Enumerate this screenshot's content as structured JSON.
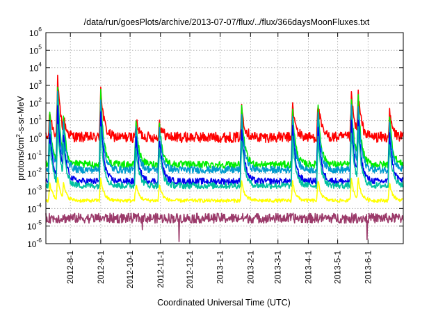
{
  "chart_data": {
    "type": "line",
    "title": "/data/run/goesPlots/archive/2013-07-07/flux/../flux/366daysMoonFluxes.txt",
    "xlabel": "Coordinated Universal Time (UTC)",
    "ylabel_parts": [
      "protons/cm",
      "2",
      "-s-sr-MeV"
    ],
    "y_scale": "log",
    "ylim_exp": [
      -6,
      6
    ],
    "yticks": [
      {
        "base": "10",
        "exp": "6"
      },
      {
        "base": "10",
        "exp": "5"
      },
      {
        "base": "10",
        "exp": "4"
      },
      {
        "base": "10",
        "exp": "3"
      },
      {
        "base": "10",
        "exp": "2"
      },
      {
        "base": "10",
        "exp": "1"
      },
      {
        "base": "10",
        "exp": "0"
      },
      {
        "base": "10",
        "exp": "-1"
      },
      {
        "base": "10",
        "exp": "-2"
      },
      {
        "base": "10",
        "exp": "-3"
      },
      {
        "base": "10",
        "exp": "-4"
      },
      {
        "base": "10",
        "exp": "-5"
      },
      {
        "base": "10",
        "exp": "-6"
      }
    ],
    "xlim": [
      "2012-07-07",
      "2013-07-07"
    ],
    "xticks": [
      "2012-8-1",
      "2012-9-1",
      "2012-10-1",
      "2012-11-1",
      "2012-12-1",
      "2013-1-1",
      "2013-2-1",
      "2013-3-1",
      "2013-4-1",
      "2013-5-1",
      "2013-6-1"
    ],
    "xtick_dates": [
      "2012-08-01",
      "2012-09-01",
      "2012-10-01",
      "2012-11-01",
      "2012-12-01",
      "2013-01-01",
      "2013-02-01",
      "2013-03-01",
      "2013-04-01",
      "2013-05-01",
      "2013-06-01"
    ],
    "grid": true,
    "legend": "none",
    "events": [
      {
        "date": "2012-07-11",
        "peak_exp": 1.5
      },
      {
        "date": "2012-07-19",
        "peak_exp": 3.3
      },
      {
        "date": "2012-07-25",
        "peak_exp": 1.2
      },
      {
        "date": "2012-09-01",
        "peak_exp": 2.9
      },
      {
        "date": "2012-10-07",
        "peak_exp": 1.0
      },
      {
        "date": "2012-10-31",
        "peak_exp": 0.9
      },
      {
        "date": "2013-01-23",
        "peak_exp": 1.8
      },
      {
        "date": "2013-03-16",
        "peak_exp": 1.8
      },
      {
        "date": "2013-04-11",
        "peak_exp": 2.0
      },
      {
        "date": "2013-05-15",
        "peak_exp": 2.4
      },
      {
        "date": "2013-05-22",
        "peak_exp": 2.6
      },
      {
        "date": "2013-06-23",
        "peak_exp": 1.4
      }
    ],
    "series": [
      {
        "color": "#ff0000",
        "base_exp": 0.05,
        "noise": 0.3,
        "response": 1.0,
        "lift": 0.0
      },
      {
        "color": "#00ee00",
        "base_exp": -1.5,
        "noise": 0.2,
        "response": 0.85,
        "lift": 0.4
      },
      {
        "color": "#009acd",
        "base_exp": -1.8,
        "noise": 0.2,
        "response": 0.8,
        "lift": 0.2
      },
      {
        "color": "#0000ee",
        "base_exp": -2.45,
        "noise": 0.18,
        "response": 0.72,
        "lift": 0.0
      },
      {
        "color": "#00c0a0",
        "base_exp": -2.7,
        "noise": 0.18,
        "response": 0.6,
        "lift": 0.0
      },
      {
        "color": "#ffff00",
        "base_exp": -3.55,
        "noise": 0.1,
        "response": 0.2,
        "lift": 0.0
      },
      {
        "color": "#9b3a6a",
        "base_exp": -4.55,
        "noise": 0.28,
        "response": 0.0,
        "lift": 0.0
      }
    ]
  }
}
